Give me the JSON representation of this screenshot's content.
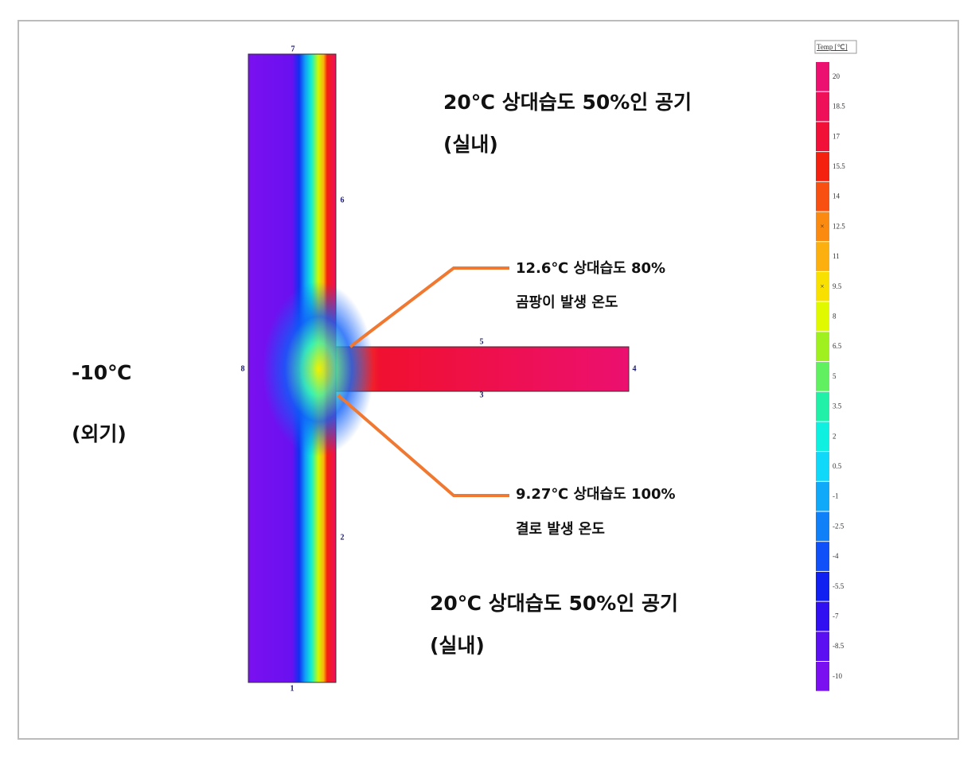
{
  "outdoor": {
    "temp": "-10℃",
    "name": "(외기)"
  },
  "indoor_top": {
    "line1": "20℃ 상대습도 50%인 공기",
    "line2": "(실내)"
  },
  "indoor_bottom": {
    "line1": "20℃ 상대습도 50%인 공기",
    "line2": "(실내)"
  },
  "callout_mold": {
    "line1": "12.6℃  상대습도 80%",
    "line2": "곰팡이 발생 온도"
  },
  "callout_condensation": {
    "line1": "9.27℃  상대습도 100%",
    "line2": "결로 발생 온도"
  },
  "node_labels": [
    "1",
    "2",
    "3",
    "4",
    "5",
    "6",
    "7",
    "8"
  ],
  "legend": {
    "title": "Temp [℃]",
    "entries": [
      {
        "label": "20",
        "color": "#ec1070"
      },
      {
        "label": "18.5",
        "color": "#ee1058"
      },
      {
        "label": "17",
        "color": "#f01038"
      },
      {
        "label": "15.5",
        "color": "#f42010"
      },
      {
        "label": "14",
        "color": "#f85010"
      },
      {
        "label": "12.5",
        "color": "#fa8a10",
        "marker": "×"
      },
      {
        "label": "11",
        "color": "#fcb010"
      },
      {
        "label": "9.5",
        "color": "#f8e000",
        "marker": "×"
      },
      {
        "label": "8",
        "color": "#e0f800"
      },
      {
        "label": "6.5",
        "color": "#a0f020"
      },
      {
        "label": "5",
        "color": "#60f060"
      },
      {
        "label": "3.5",
        "color": "#20f0a8"
      },
      {
        "label": "2",
        "color": "#10f0e0"
      },
      {
        "label": "0.5",
        "color": "#10d8f8"
      },
      {
        "label": "-1",
        "color": "#10a8f8"
      },
      {
        "label": "-2.5",
        "color": "#1080f8"
      },
      {
        "label": "-4",
        "color": "#1050f8"
      },
      {
        "label": "-5.5",
        "color": "#1020f0"
      },
      {
        "label": "-7",
        "color": "#3010f0"
      },
      {
        "label": "-8.5",
        "color": "#5a10f0"
      },
      {
        "label": "-10",
        "color": "#7a10f0"
      }
    ]
  }
}
